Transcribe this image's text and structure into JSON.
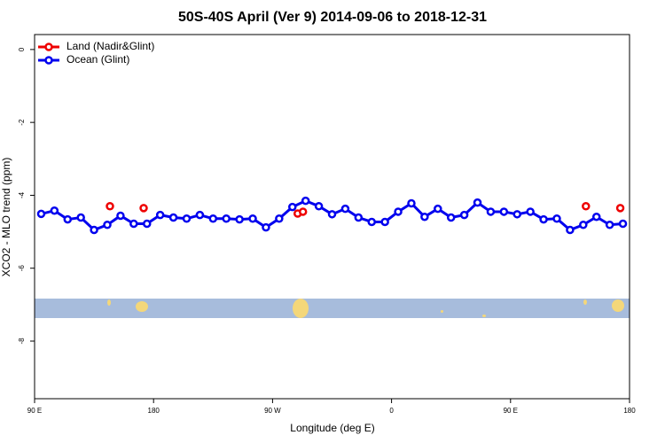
{
  "chart_data": {
    "type": "line",
    "title": "50S-40S April (Ver 9)   2014-09-06 to 2018-12-31",
    "x_label": "Longitude (deg E)",
    "y_label": "XCO2 - MLO trend (ppm)",
    "xlim": [
      90,
      540
    ],
    "ylim": [
      -9.58,
      0.41
    ],
    "xticks": [
      {
        "value": 90,
        "label": "90 E"
      },
      180,
      {
        "value": 270,
        "label": "90 W"
      },
      {
        "value": 360,
        "label": "0"
      },
      {
        "value": 450,
        "label": "90 E"
      },
      {
        "value": 540,
        "label": "180"
      }
    ],
    "yticks": [
      0,
      -2,
      -4,
      -6,
      -8
    ],
    "legend": "top-left",
    "series": [
      {
        "name": "Land (Nadir&Glint)",
        "color": "#ee0000",
        "lines": false,
        "x": [
          147,
          172.5,
          289,
          293,
          507,
          533
        ],
        "values": [
          -4.3,
          -4.35,
          -4.5,
          -4.45,
          -4.3,
          -4.35
        ]
      },
      {
        "name": "Ocean (Glint)",
        "color": "#0000ee",
        "lines": true,
        "x": [
          95,
          105,
          115,
          125,
          135,
          145,
          155,
          165,
          175,
          185,
          195,
          205,
          215,
          225,
          235,
          245,
          255,
          265,
          275,
          285,
          295,
          305,
          315,
          325,
          335,
          345,
          355,
          365,
          375,
          385,
          395,
          405,
          415,
          425,
          435,
          445,
          455,
          465,
          475,
          485,
          495,
          505,
          515,
          525,
          535
        ],
        "values": [
          -4.51,
          -4.42,
          -4.66,
          -4.61,
          -4.95,
          -4.81,
          -4.56,
          -4.78,
          -4.78,
          -4.54,
          -4.61,
          -4.64,
          -4.54,
          -4.64,
          -4.64,
          -4.66,
          -4.64,
          -4.88,
          -4.64,
          -4.32,
          -4.15,
          -4.3,
          -4.52,
          -4.37,
          -4.61,
          -4.73,
          -4.73,
          -4.45,
          -4.22,
          -4.59,
          -4.37,
          -4.61,
          -4.54,
          -4.2,
          -4.45,
          -4.45,
          -4.52,
          -4.45,
          -4.66,
          -4.64,
          -4.95,
          -4.81,
          -4.59,
          -4.81,
          -4.78
        ]
      }
    ]
  }
}
